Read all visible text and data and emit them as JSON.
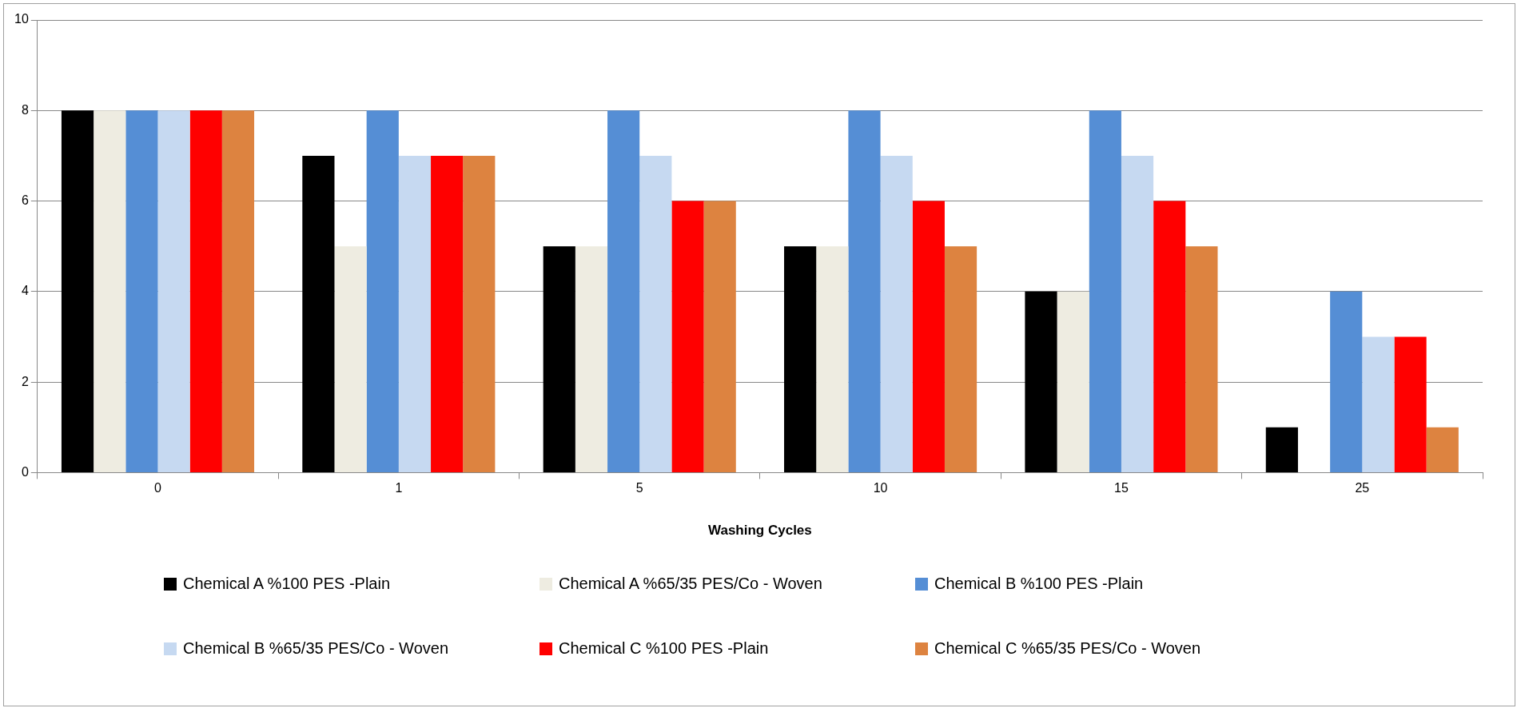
{
  "chart_data": {
    "type": "bar",
    "xlabel": "Washing Cycles",
    "categories": [
      "0",
      "1",
      "5",
      "10",
      "15",
      "25"
    ],
    "series": [
      {
        "name": "Chemical A %100 PES -Plain",
        "color": "#000000",
        "values": [
          8,
          7,
          5,
          5,
          4,
          1
        ]
      },
      {
        "name": "Chemical A %65/35 PES/Co - Woven",
        "color": "#eeece1",
        "values": [
          8,
          5,
          5,
          5,
          4,
          0
        ]
      },
      {
        "name": "Chemical B %100 PES -Plain",
        "color": "#558ed5",
        "values": [
          8,
          8,
          8,
          8,
          8,
          4
        ]
      },
      {
        "name": "Chemical B %65/35 PES/Co - Woven",
        "color": "#c6d9f1",
        "values": [
          8,
          7,
          7,
          7,
          7,
          3
        ]
      },
      {
        "name": "Chemical C %100 PES -Plain",
        "color": "#ff0000",
        "values": [
          8,
          7,
          6,
          6,
          6,
          3
        ]
      },
      {
        "name": "Chemical C %65/35 PES/Co - Woven",
        "color": "#dd8340",
        "values": [
          8,
          7,
          6,
          5,
          5,
          1
        ]
      }
    ],
    "ylim": [
      0,
      10
    ],
    "yticks": [
      0,
      2,
      4,
      6,
      8,
      10
    ],
    "grid": "y",
    "legend": "bottom"
  }
}
